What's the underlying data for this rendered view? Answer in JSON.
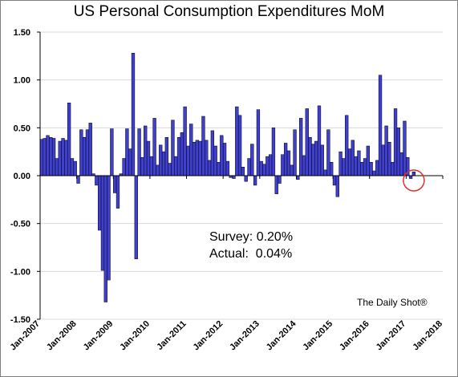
{
  "chart_data": {
    "type": "bar",
    "title": "US Personal Consumption Expenditures MoM",
    "xlabel": "",
    "ylabel": "",
    "ylim": [
      -1.5,
      1.5
    ],
    "yticks": [
      "1.50",
      "1.00",
      "0.50",
      "0.00",
      "-0.50",
      "-1.00",
      "-1.50"
    ],
    "xticks": [
      "Jan-2007",
      "Jan-2008",
      "Jan-2009",
      "Jan-2010",
      "Jan-2011",
      "Jan-2012",
      "Jan-2013",
      "Jan-2014",
      "Jan-2015",
      "Jan-2016",
      "Jan-2017",
      "Jan-2018"
    ],
    "x_start": "2007-01",
    "grid": true,
    "bar_color": "#3f3fd0",
    "highlight_color": "#e03030",
    "series": [
      {
        "values": [
          0.38,
          0.39,
          0.42,
          0.4,
          0.39,
          0.18,
          0.36,
          0.39,
          0.37,
          0.76,
          0.18,
          0.15,
          -0.08,
          0.48,
          0.4,
          0.48,
          0.55,
          0.02,
          -0.1,
          -0.57,
          -0.99,
          -1.32,
          -1.09,
          0.49,
          -0.18,
          -0.34,
          0.02,
          0.18,
          0.49,
          0.28,
          1.28,
          -0.87,
          0.49,
          0.19,
          0.52,
          0.36,
          0.2,
          0.6,
          0.11,
          0.32,
          0.25,
          0.4,
          0.13,
          0.58,
          0.2,
          0.4,
          0.45,
          0.72,
          0.31,
          0.54,
          0.35,
          0.37,
          0.36,
          0.62,
          0.37,
          0.16,
          0.47,
          0.31,
          0.14,
          0.42,
          0.34,
          0.15,
          -0.02,
          -0.03,
          0.72,
          0.63,
          0.09,
          -0.06,
          0.18,
          0.33,
          -0.1,
          0.69,
          0.15,
          0.12,
          0.2,
          0.22,
          0.5,
          -0.19,
          -0.08,
          0.22,
          0.34,
          0.26,
          0.11,
          0.48,
          -0.04,
          0.6,
          0.21,
          0.7,
          0.4,
          0.33,
          0.36,
          0.73,
          0.32,
          0.06,
          0.48,
          0.14,
          -0.1,
          -0.22,
          0.25,
          0.18,
          0.63,
          0.28,
          0.37,
          0.2,
          0.26,
          0.14,
          0.18,
          0.31,
          0.14,
          0.05,
          0.16,
          1.05,
          0.32,
          0.52,
          0.35,
          0.14,
          0.7,
          0.5,
          0.24,
          0.57,
          0.19,
          -0.03,
          0.04
        ]
      }
    ],
    "highlight_index": 122,
    "annotations": {
      "survey": "Survey: 0.20%",
      "actual": "Actual:  0.04%"
    },
    "credit": "The Daily Shot®"
  }
}
